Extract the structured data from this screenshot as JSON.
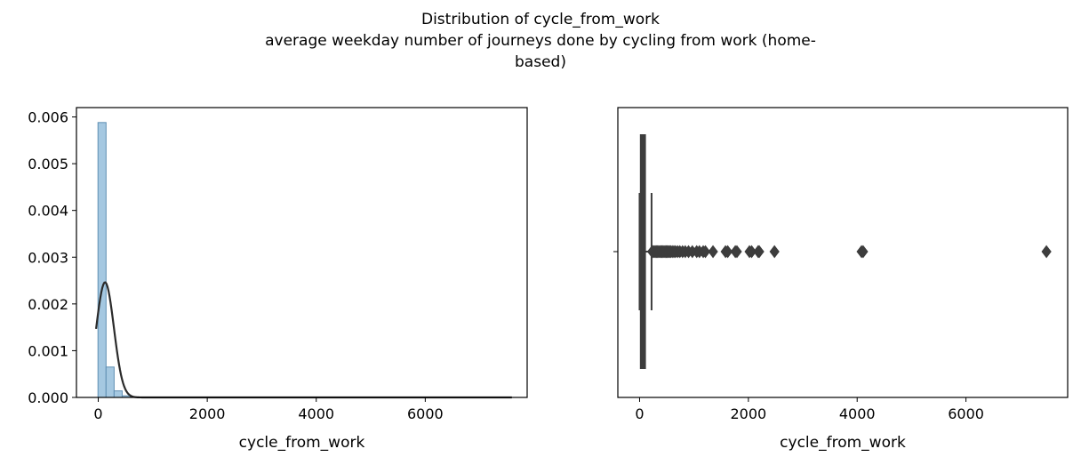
{
  "figure": {
    "title_lines": [
      "Distribution of cycle_from_work",
      "average weekday number of journeys done by cycling from work (home-",
      "based)"
    ]
  },
  "chart_data": [
    {
      "type": "histogram",
      "xlabel": "cycle_from_work",
      "ylabel": "",
      "xlim": [
        -400,
        7870
      ],
      "ylim": [
        0,
        0.0062
      ],
      "xticks": [
        0,
        2000,
        4000,
        6000
      ],
      "yticks": [
        0.0,
        0.001,
        0.002,
        0.003,
        0.004,
        0.005,
        0.006
      ],
      "ytick_labels": [
        "0.000",
        "0.001",
        "0.002",
        "0.003",
        "0.004",
        "0.005",
        "0.006"
      ],
      "bins": [
        {
          "x0": -5,
          "x1": 143,
          "density": 0.00588
        },
        {
          "x0": 143,
          "x1": 291,
          "density": 0.00065
        },
        {
          "x0": 291,
          "x1": 439,
          "density": 0.00014
        },
        {
          "x0": 439,
          "x1": 587,
          "density": 3.5e-05
        },
        {
          "x0": 587,
          "x1": 735,
          "density": 1e-05
        },
        {
          "x0": 735,
          "x1": 883,
          "density": 5e-06
        }
      ],
      "fit_curve": {
        "type": "normal",
        "mean": 125,
        "std": 162,
        "x_range": [
          -40,
          7590
        ]
      },
      "bar_color": "#a5c8e1",
      "bar_edge_color": "#5f8fb3",
      "curve_color": "#2b2b2b"
    },
    {
      "type": "boxplot",
      "orientation": "horizontal",
      "xlabel": "cycle_from_work",
      "xlim": [
        -400,
        7870
      ],
      "xticks": [
        0,
        2000,
        4000,
        6000
      ],
      "box": {
        "whisker_low": 0,
        "q1": 22,
        "median": 45,
        "q3": 100,
        "whisker_high": 220
      },
      "outliers": [
        230,
        250,
        270,
        290,
        310,
        330,
        350,
        370,
        390,
        410,
        430,
        450,
        470,
        490,
        510,
        530,
        550,
        570,
        600,
        630,
        660,
        700,
        740,
        790,
        840,
        900,
        970,
        1050,
        1100,
        1170,
        1210,
        1350,
        1580,
        1620,
        1760,
        1790,
        2020,
        2060,
        2180,
        2200,
        2480,
        4080,
        4110,
        7480
      ],
      "color": "#3d3d3d"
    }
  ]
}
